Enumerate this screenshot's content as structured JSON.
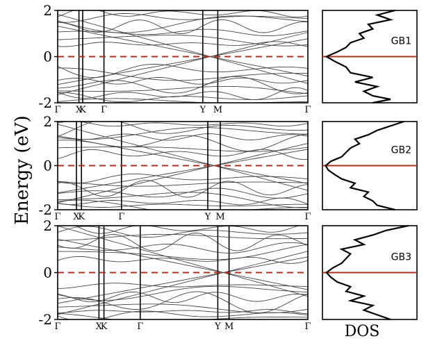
{
  "chart_data": {
    "type": "line",
    "ylabel": "Energy (eV)",
    "dos_label": "DOS",
    "colors": {
      "band": "#444444",
      "fermi": "#b03020",
      "frame": "#000000"
    },
    "panels": [
      {
        "name": "GB1",
        "ylim": [
          -2,
          2
        ],
        "yticks": [
          2,
          0,
          -2
        ],
        "kpoints": [
          {
            "label": "Γ",
            "pos": 0.0
          },
          {
            "label": "X",
            "pos": 0.085
          },
          {
            "label": "K",
            "pos": 0.1
          },
          {
            "label": "Γ",
            "pos": 0.185
          },
          {
            "label": "Y",
            "pos": 0.58
          },
          {
            "label": "M",
            "pos": 0.64
          },
          {
            "label": "Γ",
            "pos": 1.0
          }
        ],
        "fermi_level": 0,
        "dos": [
          [
            -2.0,
            0.55
          ],
          [
            -1.85,
            0.75
          ],
          [
            -1.7,
            0.55
          ],
          [
            -1.5,
            0.45
          ],
          [
            -1.3,
            0.6
          ],
          [
            -1.1,
            0.35
          ],
          [
            -0.9,
            0.55
          ],
          [
            -0.7,
            0.3
          ],
          [
            -0.45,
            0.25
          ],
          [
            -0.2,
            0.12
          ],
          [
            0.0,
            0.03
          ],
          [
            0.2,
            0.15
          ],
          [
            0.4,
            0.25
          ],
          [
            0.6,
            0.3
          ],
          [
            0.8,
            0.45
          ],
          [
            1.0,
            0.4
          ],
          [
            1.2,
            0.55
          ],
          [
            1.4,
            0.5
          ],
          [
            1.6,
            0.75
          ],
          [
            1.8,
            0.6
          ],
          [
            2.0,
            0.8
          ]
        ]
      },
      {
        "name": "GB2",
        "ylim": [
          -2,
          2
        ],
        "yticks": [
          2,
          0,
          -2
        ],
        "kpoints": [
          {
            "label": "Γ",
            "pos": 0.0
          },
          {
            "label": "X",
            "pos": 0.075
          },
          {
            "label": "K",
            "pos": 0.095
          },
          {
            "label": "Γ",
            "pos": 0.255
          },
          {
            "label": "Y",
            "pos": 0.6
          },
          {
            "label": "M",
            "pos": 0.65
          },
          {
            "label": "Γ",
            "pos": 1.0
          }
        ],
        "fermi_level": 0,
        "dos": [
          [
            -2.0,
            0.8
          ],
          [
            -1.8,
            0.6
          ],
          [
            -1.6,
            0.55
          ],
          [
            -1.4,
            0.45
          ],
          [
            -1.2,
            0.5
          ],
          [
            -1.0,
            0.3
          ],
          [
            -0.8,
            0.35
          ],
          [
            -0.6,
            0.2
          ],
          [
            -0.4,
            0.12
          ],
          [
            -0.2,
            0.05
          ],
          [
            0.0,
            0.02
          ],
          [
            0.2,
            0.08
          ],
          [
            0.4,
            0.2
          ],
          [
            0.6,
            0.25
          ],
          [
            0.8,
            0.3
          ],
          [
            1.0,
            0.4
          ],
          [
            1.2,
            0.35
          ],
          [
            1.4,
            0.5
          ],
          [
            1.6,
            0.6
          ],
          [
            1.8,
            0.75
          ],
          [
            2.0,
            0.9
          ]
        ]
      },
      {
        "name": "GB3",
        "ylim": [
          -2,
          2
        ],
        "yticks": [
          2,
          0,
          -2
        ],
        "kpoints": [
          {
            "label": "Γ",
            "pos": 0.0
          },
          {
            "label": "X",
            "pos": 0.165
          },
          {
            "label": "K",
            "pos": 0.185
          },
          {
            "label": "Γ",
            "pos": 0.33
          },
          {
            "label": "Y",
            "pos": 0.64
          },
          {
            "label": "M",
            "pos": 0.685
          },
          {
            "label": "Γ",
            "pos": 1.0
          }
        ],
        "fermi_level": 0,
        "dos": [
          [
            -2.0,
            0.75
          ],
          [
            -1.8,
            0.6
          ],
          [
            -1.6,
            0.45
          ],
          [
            -1.4,
            0.55
          ],
          [
            -1.2,
            0.3
          ],
          [
            -1.0,
            0.45
          ],
          [
            -0.8,
            0.25
          ],
          [
            -0.6,
            0.3
          ],
          [
            -0.4,
            0.15
          ],
          [
            -0.2,
            0.08
          ],
          [
            0.0,
            0.03
          ],
          [
            0.2,
            0.1
          ],
          [
            0.4,
            0.2
          ],
          [
            0.6,
            0.25
          ],
          [
            0.8,
            0.3
          ],
          [
            1.0,
            0.2
          ],
          [
            1.2,
            0.45
          ],
          [
            1.4,
            0.35
          ],
          [
            1.6,
            0.55
          ],
          [
            1.8,
            0.7
          ],
          [
            2.0,
            0.95
          ]
        ]
      }
    ]
  }
}
